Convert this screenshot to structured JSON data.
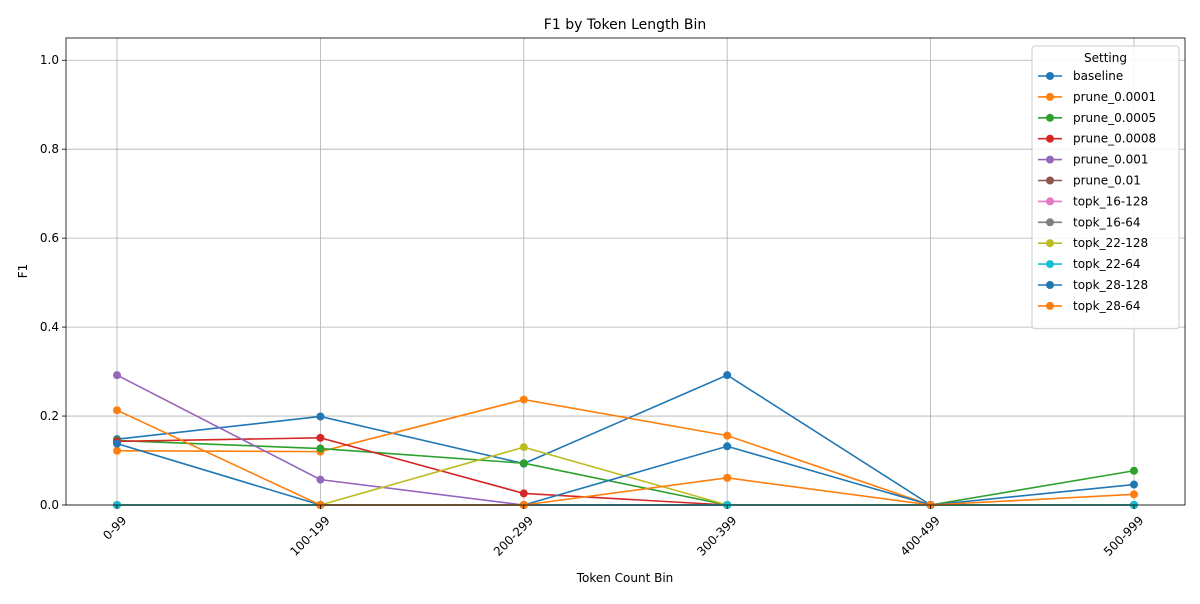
{
  "chart_data": {
    "type": "line",
    "title": "F1 by Token Length Bin",
    "xlabel": "Token Count Bin",
    "ylabel": "F1",
    "categories": [
      "0-99",
      "100-199",
      "200-299",
      "300-399",
      "400-499",
      "500-999"
    ],
    "ylim": [
      0,
      1.05
    ],
    "yticks": [
      0.0,
      0.2,
      0.4,
      0.6,
      0.8,
      1.0
    ],
    "ytick_labels": [
      "0.0",
      "0.2",
      "0.4",
      "0.6",
      "0.8",
      "1.0"
    ],
    "grid": true,
    "legend": {
      "title": "Setting",
      "placement": "top-right"
    },
    "series": [
      {
        "name": "baseline",
        "color": "#1f77b4",
        "values": [
          0.148,
          0.199,
          0.093,
          0.292,
          0.0,
          0.0
        ]
      },
      {
        "name": "prune_0.0001",
        "color": "#ff7f0e",
        "values": [
          0.122,
          0.12,
          0.237,
          0.156,
          0.0,
          0.0
        ]
      },
      {
        "name": "prune_0.0005",
        "color": "#2ca02c",
        "values": [
          0.145,
          0.127,
          0.094,
          0.0,
          0.0,
          0.077
        ]
      },
      {
        "name": "prune_0.0008",
        "color": "#d62728",
        "values": [
          0.143,
          0.151,
          0.026,
          0.0,
          0.0,
          0.0
        ]
      },
      {
        "name": "prune_0.001",
        "color": "#9467bd",
        "values": [
          0.292,
          0.057,
          0.0,
          0.0,
          0.0,
          0.0
        ]
      },
      {
        "name": "prune_0.01",
        "color": "#8c564b",
        "values": [
          0.0,
          0.0,
          0.0,
          0.0,
          0.0,
          0.0
        ]
      },
      {
        "name": "topk_16-128",
        "color": "#e377c2",
        "values": [
          0.0,
          0.0,
          0.0,
          0.0,
          0.0,
          0.0
        ]
      },
      {
        "name": "topk_16-64",
        "color": "#7f7f7f",
        "values": [
          0.0,
          0.0,
          0.0,
          0.0,
          0.0,
          0.0
        ]
      },
      {
        "name": "topk_22-128",
        "color": "#bcbd22",
        "values": [
          0.0,
          0.0,
          0.13,
          0.0,
          0.0,
          0.0
        ]
      },
      {
        "name": "topk_22-64",
        "color": "#17becf",
        "values": [
          0.0,
          0.0,
          0.0,
          0.0,
          0.0,
          0.0
        ]
      },
      {
        "name": "topk_28-128",
        "color": "#1f77b4",
        "values": [
          0.138,
          0.0,
          0.0,
          0.132,
          0.0,
          0.046
        ]
      },
      {
        "name": "topk_28-64",
        "color": "#ff7f0e",
        "values": [
          0.213,
          0.0,
          0.0,
          0.061,
          0.0,
          0.024
        ]
      }
    ]
  }
}
